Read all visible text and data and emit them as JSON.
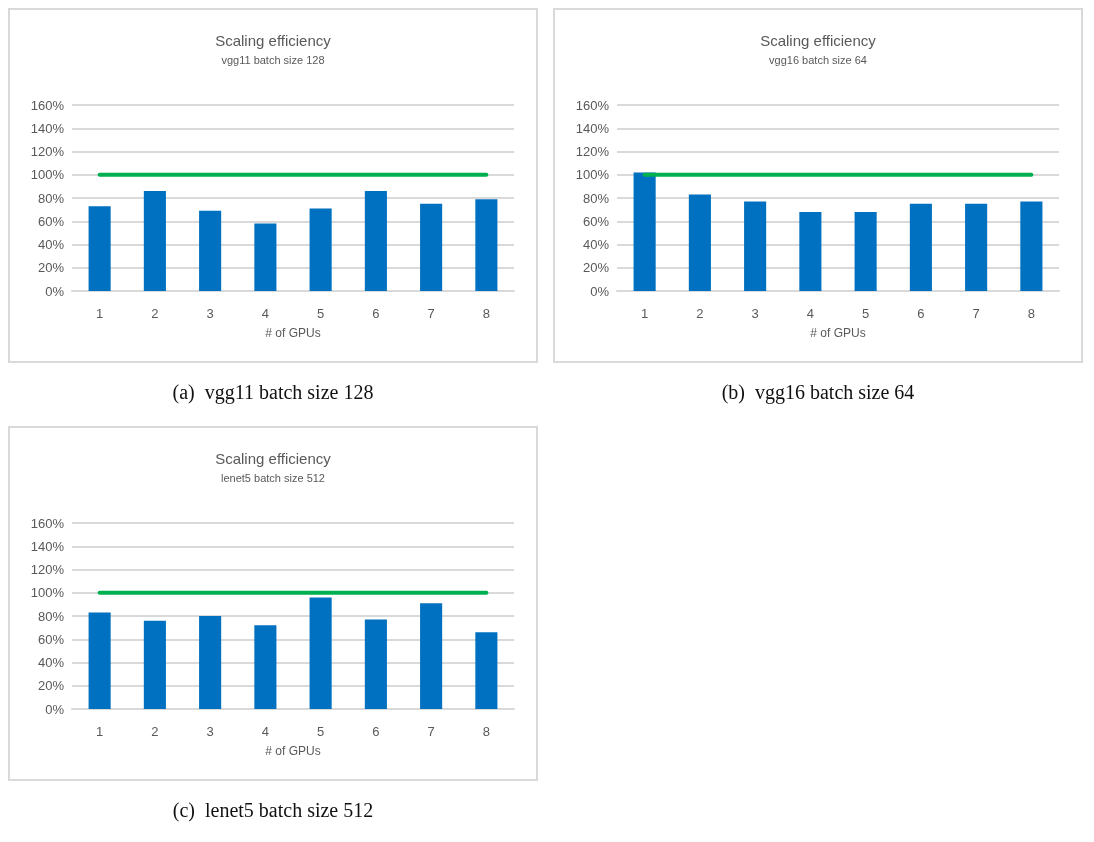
{
  "chart_data": [
    {
      "type": "bar",
      "title": "Scaling efficiency",
      "subtitle": "vgg11 batch size 128",
      "xlabel": "# of GPUs",
      "categories": [
        "1",
        "2",
        "3",
        "4",
        "5",
        "6",
        "7",
        "8"
      ],
      "series": [
        {
          "color": "#0070c0",
          "values": [
            73,
            86,
            69,
            58,
            71,
            86,
            75,
            79
          ]
        },
        {
          "type": "line",
          "color": "#00b050",
          "values": [
            100,
            100,
            100,
            100,
            100,
            100,
            100,
            100
          ]
        }
      ],
      "ylim": [
        0,
        160
      ],
      "yticks": [
        {
          "value": 0,
          "label": "0%"
        },
        {
          "value": 20,
          "label": "20%"
        },
        {
          "value": 40,
          "label": "40%"
        },
        {
          "value": 60,
          "label": "60%"
        },
        {
          "value": 80,
          "label": "80%"
        },
        {
          "value": 100,
          "label": "100%"
        },
        {
          "value": 120,
          "label": "120%"
        },
        {
          "value": 140,
          "label": "140%"
        },
        {
          "value": 160,
          "label": "160%"
        }
      ],
      "grid": "y",
      "marker": "none",
      "annotations": [
        "(a)  vgg11 batch size 128"
      ]
    },
    {
      "type": "bar",
      "title": "Scaling efficiency",
      "subtitle": "vgg16 batch size 64",
      "xlabel": "# of GPUs",
      "categories": [
        "1",
        "2",
        "3",
        "4",
        "5",
        "6",
        "7",
        "8"
      ],
      "series": [
        {
          "color": "#0070c0",
          "values": [
            102,
            83,
            77,
            68,
            68,
            75,
            75,
            77
          ]
        },
        {
          "type": "line",
          "color": "#00b050",
          "values": [
            100,
            100,
            100,
            100,
            100,
            100,
            100,
            100
          ]
        }
      ],
      "ylim": [
        0,
        160
      ],
      "yticks": [
        {
          "value": 0,
          "label": "0%"
        },
        {
          "value": 20,
          "label": "20%"
        },
        {
          "value": 40,
          "label": "40%"
        },
        {
          "value": 60,
          "label": "60%"
        },
        {
          "value": 80,
          "label": "80%"
        },
        {
          "value": 100,
          "label": "100%"
        },
        {
          "value": 120,
          "label": "120%"
        },
        {
          "value": 140,
          "label": "140%"
        },
        {
          "value": 160,
          "label": "160%"
        }
      ],
      "grid": "y",
      "marker": "none",
      "annotations": [
        "(b)  vgg16 batch size 64"
      ]
    },
    {
      "type": "bar",
      "title": "Scaling efficiency",
      "subtitle": "lenet5 batch size 512",
      "xlabel": "# of GPUs",
      "categories": [
        "1",
        "2",
        "3",
        "4",
        "5",
        "6",
        "7",
        "8"
      ],
      "series": [
        {
          "color": "#0070c0",
          "values": [
            83,
            76,
            80,
            72,
            96,
            77,
            91,
            66
          ]
        },
        {
          "type": "line",
          "color": "#00b050",
          "values": [
            100,
            100,
            100,
            100,
            100,
            100,
            100,
            100
          ]
        }
      ],
      "ylim": [
        0,
        160
      ],
      "yticks": [
        {
          "value": 0,
          "label": "0%"
        },
        {
          "value": 20,
          "label": "20%"
        },
        {
          "value": 40,
          "label": "40%"
        },
        {
          "value": 60,
          "label": "60%"
        },
        {
          "value": 80,
          "label": "80%"
        },
        {
          "value": 100,
          "label": "100%"
        },
        {
          "value": 120,
          "label": "120%"
        },
        {
          "value": 140,
          "label": "140%"
        },
        {
          "value": 160,
          "label": "160%"
        }
      ],
      "grid": "y",
      "marker": "none",
      "annotations": [
        "(c)  lenet5 batch size 512"
      ]
    }
  ]
}
